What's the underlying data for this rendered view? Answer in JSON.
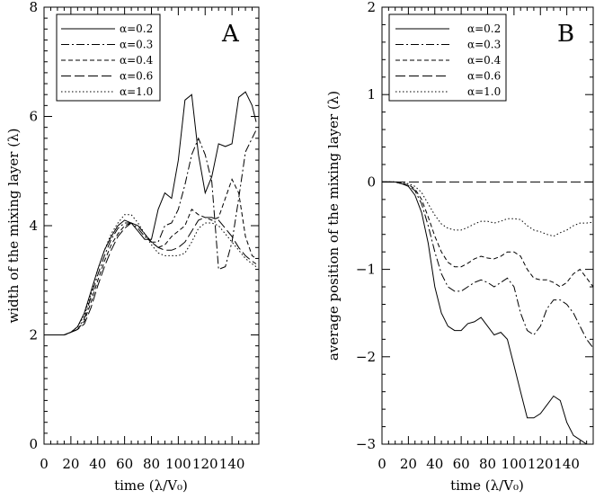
{
  "chart_data": [
    {
      "panel": "A",
      "type": "line",
      "xlabel": "time (λ/V₀)",
      "ylabel": "width of the mixing layer (λ)",
      "xlim": [
        0,
        160
      ],
      "ylim": [
        0,
        8
      ],
      "xticks": [
        0,
        20,
        40,
        60,
        80,
        100,
        120,
        140
      ],
      "xtick_labels": [
        "0",
        "20",
        "40",
        "60",
        "80",
        "100",
        "120",
        "140"
      ],
      "yticks": [
        0,
        2,
        4,
        6,
        8
      ],
      "ytick_labels": [
        "0",
        "2",
        "4",
        "6",
        "8"
      ],
      "legend_position": "top-left",
      "series": [
        {
          "name": "α=0.2",
          "dash": "solid",
          "x": [
            0,
            15,
            20,
            25,
            30,
            35,
            40,
            45,
            50,
            55,
            60,
            65,
            70,
            75,
            80,
            85,
            90,
            95,
            100,
            105,
            110,
            115,
            120,
            125,
            130,
            135,
            140,
            145,
            150,
            155,
            158
          ],
          "y": [
            2,
            2,
            2.05,
            2.15,
            2.4,
            2.8,
            3.2,
            3.55,
            3.8,
            4,
            4.1,
            4.05,
            3.9,
            3.75,
            3.75,
            4.3,
            4.6,
            4.5,
            5.2,
            6.3,
            6.4,
            5.3,
            4.6,
            4.9,
            5.5,
            5.45,
            5.5,
            6.35,
            6.45,
            6.2,
            5.9
          ]
        },
        {
          "name": "α=0.3",
          "dash": "dashdot",
          "x": [
            0,
            15,
            20,
            25,
            30,
            35,
            40,
            45,
            50,
            55,
            60,
            65,
            70,
            75,
            80,
            85,
            90,
            95,
            100,
            105,
            110,
            115,
            120,
            125,
            130,
            135,
            140,
            145,
            150,
            155,
            158
          ],
          "y": [
            2,
            2,
            2.05,
            2.1,
            2.3,
            2.7,
            3.1,
            3.45,
            3.75,
            3.95,
            4.05,
            4.05,
            3.95,
            3.8,
            3.7,
            3.7,
            4,
            4.05,
            4.3,
            4.75,
            5.3,
            5.6,
            5.3,
            4.8,
            3.2,
            3.25,
            3.7,
            4.5,
            5.35,
            5.6,
            5.75
          ]
        },
        {
          "name": "α=0.4",
          "dash": "dashed",
          "x": [
            0,
            15,
            20,
            25,
            30,
            35,
            40,
            45,
            50,
            55,
            60,
            65,
            70,
            75,
            80,
            85,
            90,
            95,
            100,
            105,
            110,
            115,
            120,
            125,
            130,
            135,
            140,
            145,
            150,
            155,
            158
          ],
          "y": [
            2,
            2,
            2.05,
            2.1,
            2.25,
            2.6,
            3,
            3.35,
            3.65,
            3.85,
            4,
            4.05,
            4,
            3.85,
            3.7,
            3.6,
            3.65,
            3.8,
            3.9,
            4,
            4.3,
            4.2,
            4.15,
            4.1,
            4.15,
            4.5,
            4.85,
            4.6,
            3.8,
            3.45,
            3.4
          ]
        },
        {
          "name": "α=0.6",
          "dash": "longdash",
          "x": [
            0,
            15,
            20,
            25,
            30,
            35,
            40,
            45,
            50,
            55,
            60,
            65,
            70,
            75,
            80,
            85,
            90,
            95,
            100,
            105,
            110,
            115,
            120,
            125,
            130,
            135,
            140,
            145,
            150,
            155,
            158
          ],
          "y": [
            2,
            2,
            2.05,
            2.1,
            2.2,
            2.5,
            2.9,
            3.25,
            3.55,
            3.8,
            3.95,
            4.05,
            4,
            3.85,
            3.7,
            3.6,
            3.55,
            3.55,
            3.6,
            3.7,
            3.9,
            4.1,
            4.15,
            4.15,
            4.1,
            3.95,
            3.8,
            3.6,
            3.45,
            3.35,
            3.3
          ]
        },
        {
          "name": "α=1.0",
          "dash": "dot",
          "x": [
            0,
            15,
            20,
            25,
            30,
            35,
            40,
            45,
            50,
            55,
            60,
            65,
            70,
            75,
            80,
            85,
            90,
            95,
            100,
            105,
            110,
            115,
            120,
            125,
            130,
            135,
            140,
            145,
            150,
            155,
            158
          ],
          "y": [
            2,
            2,
            2.05,
            2.15,
            2.35,
            2.75,
            3.2,
            3.55,
            3.85,
            4.05,
            4.2,
            4.2,
            4.05,
            3.85,
            3.65,
            3.5,
            3.45,
            3.45,
            3.45,
            3.5,
            3.7,
            3.95,
            4.05,
            4.05,
            4,
            3.85,
            3.7,
            3.55,
            3.4,
            3.3,
            3.25
          ]
        }
      ]
    },
    {
      "panel": "B",
      "type": "line",
      "xlabel": "time (λ/V₀)",
      "ylabel": "average position of the mixing layer (λ)",
      "xlim": [
        0,
        160
      ],
      "ylim": [
        -3,
        2
      ],
      "xticks": [
        0,
        20,
        40,
        60,
        80,
        100,
        120,
        140
      ],
      "xtick_labels": [
        "0",
        "20",
        "40",
        "60",
        "80",
        "100",
        "120",
        "140"
      ],
      "yticks": [
        -3,
        -2,
        -1,
        0,
        1,
        2
      ],
      "ytick_labels": [
        "−3",
        "−2",
        "−1",
        "0",
        "1",
        "2"
      ],
      "legend_position": "top-left",
      "series": [
        {
          "name": "α=0.2",
          "dash": "solid",
          "x": [
            0,
            10,
            15,
            20,
            25,
            30,
            35,
            40,
            45,
            50,
            55,
            60,
            65,
            70,
            75,
            80,
            85,
            90,
            95,
            100,
            105,
            110,
            115,
            120,
            125,
            130,
            135,
            140,
            145,
            150,
            155,
            160
          ],
          "y": [
            0,
            0,
            -0.02,
            -0.05,
            -0.15,
            -0.35,
            -0.7,
            -1.2,
            -1.5,
            -1.65,
            -1.7,
            -1.7,
            -1.62,
            -1.6,
            -1.55,
            -1.65,
            -1.75,
            -1.72,
            -1.8,
            -2.1,
            -2.4,
            -2.7,
            -2.7,
            -2.65,
            -2.55,
            -2.45,
            -2.5,
            -2.75,
            -2.9,
            -2.95,
            -3,
            -3
          ]
        },
        {
          "name": "α=0.3",
          "dash": "dashdot",
          "x": [
            0,
            10,
            15,
            20,
            25,
            30,
            35,
            40,
            45,
            50,
            55,
            60,
            65,
            70,
            75,
            80,
            85,
            90,
            95,
            100,
            105,
            110,
            115,
            120,
            125,
            130,
            135,
            140,
            145,
            150,
            155,
            160
          ],
          "y": [
            0,
            0,
            -0.02,
            -0.04,
            -0.1,
            -0.25,
            -0.5,
            -0.8,
            -1.05,
            -1.2,
            -1.25,
            -1.25,
            -1.2,
            -1.15,
            -1.12,
            -1.15,
            -1.2,
            -1.15,
            -1.1,
            -1.2,
            -1.5,
            -1.7,
            -1.75,
            -1.65,
            -1.45,
            -1.35,
            -1.35,
            -1.4,
            -1.5,
            -1.65,
            -1.8,
            -1.9
          ]
        },
        {
          "name": "α=0.4",
          "dash": "dashed",
          "x": [
            0,
            10,
            15,
            20,
            25,
            30,
            35,
            40,
            45,
            50,
            55,
            60,
            65,
            70,
            75,
            80,
            85,
            90,
            95,
            100,
            105,
            110,
            115,
            120,
            125,
            130,
            135,
            140,
            145,
            150,
            155,
            160
          ],
          "y": [
            0,
            0,
            -0.02,
            -0.03,
            -0.08,
            -0.2,
            -0.4,
            -0.62,
            -0.8,
            -0.92,
            -0.97,
            -0.97,
            -0.93,
            -0.88,
            -0.85,
            -0.87,
            -0.88,
            -0.85,
            -0.8,
            -0.8,
            -0.85,
            -1,
            -1.1,
            -1.12,
            -1.12,
            -1.15,
            -1.2,
            -1.15,
            -1.05,
            -1,
            -1.1,
            -1.2
          ]
        },
        {
          "name": "α=0.6",
          "dash": "longdash",
          "x": [
            0,
            160
          ],
          "y": [
            0,
            0
          ]
        },
        {
          "name": "α=1.0",
          "dash": "dot",
          "x": [
            0,
            10,
            15,
            20,
            25,
            30,
            35,
            40,
            45,
            50,
            55,
            60,
            65,
            70,
            75,
            80,
            85,
            90,
            95,
            100,
            105,
            110,
            115,
            120,
            125,
            130,
            135,
            140,
            145,
            150,
            155,
            160
          ],
          "y": [
            0,
            0,
            -0.01,
            -0.02,
            -0.05,
            -0.12,
            -0.25,
            -0.38,
            -0.48,
            -0.53,
            -0.55,
            -0.55,
            -0.52,
            -0.48,
            -0.45,
            -0.45,
            -0.47,
            -0.45,
            -0.42,
            -0.42,
            -0.43,
            -0.5,
            -0.55,
            -0.57,
            -0.6,
            -0.62,
            -0.58,
            -0.55,
            -0.5,
            -0.47,
            -0.47,
            -0.46
          ]
        }
      ]
    }
  ]
}
